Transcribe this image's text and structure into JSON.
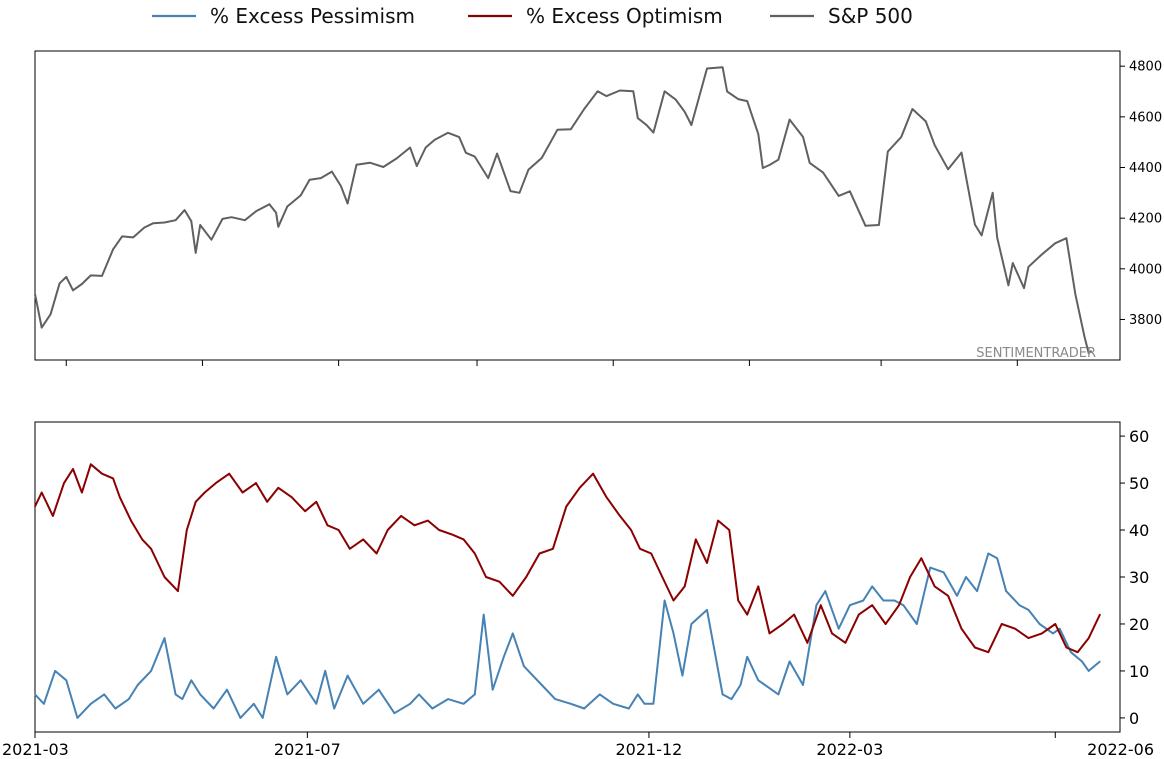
{
  "legend": {
    "placement": "top-center",
    "items": [
      {
        "label": "% Excess Pessimism",
        "color": "#4682b4"
      },
      {
        "label": "% Excess Optimism",
        "color": "#8b0000"
      },
      {
        "label": "S&P 500",
        "color": "#606060"
      }
    ]
  },
  "watermark": "SENTIMENTRADER",
  "chart_data": [
    {
      "type": "line",
      "series": [
        {
          "name": "S&P 500",
          "color": "#606060"
        }
      ],
      "x": [
        "2021-03-01",
        "2021-03-04",
        "2021-03-08",
        "2021-03-12",
        "2021-03-15",
        "2021-03-18",
        "2021-03-22",
        "2021-03-26",
        "2021-03-31",
        "2021-04-05",
        "2021-04-09",
        "2021-04-14",
        "2021-04-19",
        "2021-04-23",
        "2021-04-28",
        "2021-05-03",
        "2021-05-07",
        "2021-05-10",
        "2021-05-12",
        "2021-05-14",
        "2021-05-19",
        "2021-05-24",
        "2021-05-28",
        "2021-06-03",
        "2021-06-08",
        "2021-06-14",
        "2021-06-17",
        "2021-06-18",
        "2021-06-22",
        "2021-06-28",
        "2021-07-02",
        "2021-07-07",
        "2021-07-12",
        "2021-07-16",
        "2021-07-19",
        "2021-07-23",
        "2021-07-29",
        "2021-08-04",
        "2021-08-10",
        "2021-08-16",
        "2021-08-19",
        "2021-08-23",
        "2021-08-27",
        "2021-09-02",
        "2021-09-07",
        "2021-09-10",
        "2021-09-14",
        "2021-09-20",
        "2021-09-24",
        "2021-09-30",
        "2021-10-04",
        "2021-10-08",
        "2021-10-14",
        "2021-10-21",
        "2021-10-27",
        "2021-11-02",
        "2021-11-08",
        "2021-11-12",
        "2021-11-18",
        "2021-11-24",
        "2021-11-26",
        "2021-11-30",
        "2021-12-03",
        "2021-12-08",
        "2021-12-13",
        "2021-12-17",
        "2021-12-20",
        "2021-12-27",
        "2022-01-03",
        "2022-01-05",
        "2022-01-10",
        "2022-01-14",
        "2022-01-19",
        "2022-01-21",
        "2022-01-24",
        "2022-01-28",
        "2022-02-02",
        "2022-02-08",
        "2022-02-11",
        "2022-02-17",
        "2022-02-24",
        "2022-03-01",
        "2022-03-08",
        "2022-03-14",
        "2022-03-18",
        "2022-03-24",
        "2022-03-29",
        "2022-04-04",
        "2022-04-08",
        "2022-04-14",
        "2022-04-20",
        "2022-04-26",
        "2022-04-29",
        "2022-05-04",
        "2022-05-06",
        "2022-05-11",
        "2022-05-13",
        "2022-05-18",
        "2022-05-20",
        "2022-05-26",
        "2022-06-01",
        "2022-06-06",
        "2022-06-10",
        "2022-06-14",
        "2022-06-16",
        "2022-06-17"
      ],
      "y": [
        3901,
        3768,
        3821,
        3943,
        3968,
        3915,
        3940,
        3974,
        3972,
        4077,
        4128,
        4124,
        4163,
        4180,
        4183,
        4192,
        4232,
        4188,
        4063,
        4173,
        4115,
        4197,
        4204,
        4192,
        4227,
        4255,
        4221,
        4166,
        4246,
        4290,
        4352,
        4358,
        4384,
        4327,
        4258,
        4411,
        4419,
        4402,
        4436,
        4479,
        4406,
        4479,
        4509,
        4537,
        4520,
        4458,
        4443,
        4358,
        4455,
        4307,
        4300,
        4391,
        4438,
        4549,
        4551,
        4631,
        4701,
        4682,
        4704,
        4701,
        4595,
        4567,
        4538,
        4701,
        4668,
        4620,
        4568,
        4791,
        4796,
        4700,
        4670,
        4662,
        4532,
        4398,
        4410,
        4431,
        4589,
        4521,
        4418,
        4380,
        4288,
        4306,
        4170,
        4173,
        4463,
        4520,
        4631,
        4582,
        4488,
        4393,
        4459,
        4175,
        4132,
        4300,
        4123,
        3935,
        4023,
        3924,
        4008,
        4057,
        4101,
        4121,
        3901,
        3735,
        3667,
        3675
      ],
      "y_axis": {
        "position": "right",
        "ticks": [
          3800,
          4000,
          4200,
          4400,
          4600,
          4800
        ],
        "ylim": [
          3640,
          4860
        ]
      },
      "grid": false
    },
    {
      "type": "line",
      "series": [
        {
          "name": "% Excess Pessimism",
          "color": "#4682b4",
          "x": [
            "2021-03-01",
            "2021-03-05",
            "2021-03-10",
            "2021-03-15",
            "2021-03-20",
            "2021-03-26",
            "2021-04-01",
            "2021-04-06",
            "2021-04-12",
            "2021-04-16",
            "2021-04-22",
            "2021-04-28",
            "2021-05-03",
            "2021-05-06",
            "2021-05-10",
            "2021-05-14",
            "2021-05-20",
            "2021-05-26",
            "2021-06-01",
            "2021-06-07",
            "2021-06-11",
            "2021-06-17",
            "2021-06-22",
            "2021-06-28",
            "2021-07-05",
            "2021-07-09",
            "2021-07-13",
            "2021-07-19",
            "2021-07-26",
            "2021-08-02",
            "2021-08-09",
            "2021-08-16",
            "2021-08-20",
            "2021-08-26",
            "2021-09-02",
            "2021-09-09",
            "2021-09-14",
            "2021-09-18",
            "2021-09-22",
            "2021-09-27",
            "2021-10-01",
            "2021-10-06",
            "2021-10-10",
            "2021-10-14",
            "2021-10-20",
            "2021-10-27",
            "2021-11-02",
            "2021-11-09",
            "2021-11-15",
            "2021-11-22",
            "2021-11-26",
            "2021-11-29",
            "2021-12-03",
            "2021-12-08",
            "2021-12-12",
            "2021-12-16",
            "2021-12-20",
            "2021-12-27",
            "2022-01-03",
            "2022-01-07",
            "2022-01-11",
            "2022-01-14",
            "2022-01-19",
            "2022-01-25",
            "2022-01-28",
            "2022-02-02",
            "2022-02-08",
            "2022-02-14",
            "2022-02-18",
            "2022-02-24",
            "2022-03-01",
            "2022-03-07",
            "2022-03-11",
            "2022-03-16",
            "2022-03-21",
            "2022-03-25",
            "2022-03-31",
            "2022-04-06",
            "2022-04-12",
            "2022-04-18",
            "2022-04-22",
            "2022-04-27",
            "2022-05-02",
            "2022-05-06",
            "2022-05-10",
            "2022-05-16",
            "2022-05-20",
            "2022-05-25",
            "2022-05-31",
            "2022-06-03",
            "2022-06-08",
            "2022-06-13",
            "2022-06-16",
            "2022-06-21"
          ],
          "y": [
            5,
            3,
            10,
            8,
            0,
            3,
            5,
            2,
            4,
            7,
            10,
            17,
            5,
            4,
            8,
            5,
            2,
            6,
            0,
            3,
            0,
            13,
            5,
            8,
            3,
            10,
            2,
            9,
            3,
            6,
            1,
            3,
            5,
            2,
            4,
            3,
            5,
            22,
            6,
            13,
            18,
            11,
            9,
            7,
            4,
            3,
            2,
            5,
            3,
            2,
            5,
            3,
            3,
            25,
            18,
            9,
            20,
            23,
            5,
            4,
            7,
            13,
            8,
            6,
            5,
            12,
            7,
            24,
            27,
            19,
            24,
            25,
            28,
            25,
            25,
            24,
            20,
            32,
            31,
            26,
            30,
            27,
            35,
            34,
            27,
            24,
            23,
            20,
            18,
            19,
            14,
            12,
            10,
            12
          ]
        },
        {
          "name": "% Excess Optimism",
          "color": "#8b0000",
          "x": [
            "2021-03-01",
            "2021-03-04",
            "2021-03-09",
            "2021-03-14",
            "2021-03-18",
            "2021-03-22",
            "2021-03-26",
            "2021-03-31",
            "2021-04-05",
            "2021-04-08",
            "2021-04-13",
            "2021-04-18",
            "2021-04-22",
            "2021-04-28",
            "2021-05-04",
            "2021-05-08",
            "2021-05-12",
            "2021-05-16",
            "2021-05-21",
            "2021-05-27",
            "2021-06-02",
            "2021-06-08",
            "2021-06-13",
            "2021-06-18",
            "2021-06-24",
            "2021-06-30",
            "2021-07-05",
            "2021-07-10",
            "2021-07-15",
            "2021-07-20",
            "2021-07-26",
            "2021-08-01",
            "2021-08-06",
            "2021-08-12",
            "2021-08-18",
            "2021-08-24",
            "2021-08-29",
            "2021-09-04",
            "2021-09-09",
            "2021-09-14",
            "2021-09-19",
            "2021-09-25",
            "2021-10-01",
            "2021-10-07",
            "2021-10-13",
            "2021-10-19",
            "2021-10-25",
            "2021-10-31",
            "2021-11-06",
            "2021-11-12",
            "2021-11-18",
            "2021-11-23",
            "2021-11-27",
            "2021-12-02",
            "2021-12-07",
            "2021-12-12",
            "2021-12-17",
            "2021-12-22",
            "2021-12-27",
            "2022-01-01",
            "2022-01-06",
            "2022-01-10",
            "2022-01-14",
            "2022-01-19",
            "2022-01-24",
            "2022-01-30",
            "2022-02-04",
            "2022-02-10",
            "2022-02-16",
            "2022-02-21",
            "2022-02-27",
            "2022-03-05",
            "2022-03-11",
            "2022-03-17",
            "2022-03-23",
            "2022-03-28",
            "2022-04-02",
            "2022-04-08",
            "2022-04-14",
            "2022-04-20",
            "2022-04-26",
            "2022-05-02",
            "2022-05-08",
            "2022-05-14",
            "2022-05-20",
            "2022-05-26",
            "2022-06-01",
            "2022-06-06",
            "2022-06-11",
            "2022-06-16",
            "2022-06-21"
          ],
          "y": [
            45,
            48,
            43,
            50,
            53,
            48,
            54,
            52,
            51,
            47,
            42,
            38,
            36,
            30,
            27,
            40,
            46,
            48,
            50,
            52,
            48,
            50,
            46,
            49,
            47,
            44,
            46,
            41,
            40,
            36,
            38,
            35,
            40,
            43,
            41,
            42,
            40,
            39,
            38,
            35,
            30,
            29,
            26,
            30,
            35,
            36,
            45,
            49,
            52,
            47,
            43,
            40,
            36,
            35,
            30,
            25,
            28,
            38,
            33,
            42,
            40,
            25,
            22,
            28,
            18,
            20,
            22,
            16,
            24,
            18,
            16,
            22,
            24,
            20,
            24,
            30,
            34,
            28,
            26,
            19,
            15,
            14,
            20,
            19,
            17,
            18,
            20,
            15,
            14,
            17,
            22
          ]
        }
      ],
      "y_axis": {
        "position": "right",
        "ticks": [
          0,
          10,
          20,
          30,
          40,
          50,
          60
        ],
        "ylim": [
          -3,
          63
        ]
      },
      "x_axis": {
        "ticks": [
          "2021-03",
          "2021-07",
          "2021-12",
          "2022-03",
          "2022-06"
        ],
        "range": [
          "2021-03-01",
          "2022-06-30"
        ]
      },
      "grid": false
    }
  ]
}
